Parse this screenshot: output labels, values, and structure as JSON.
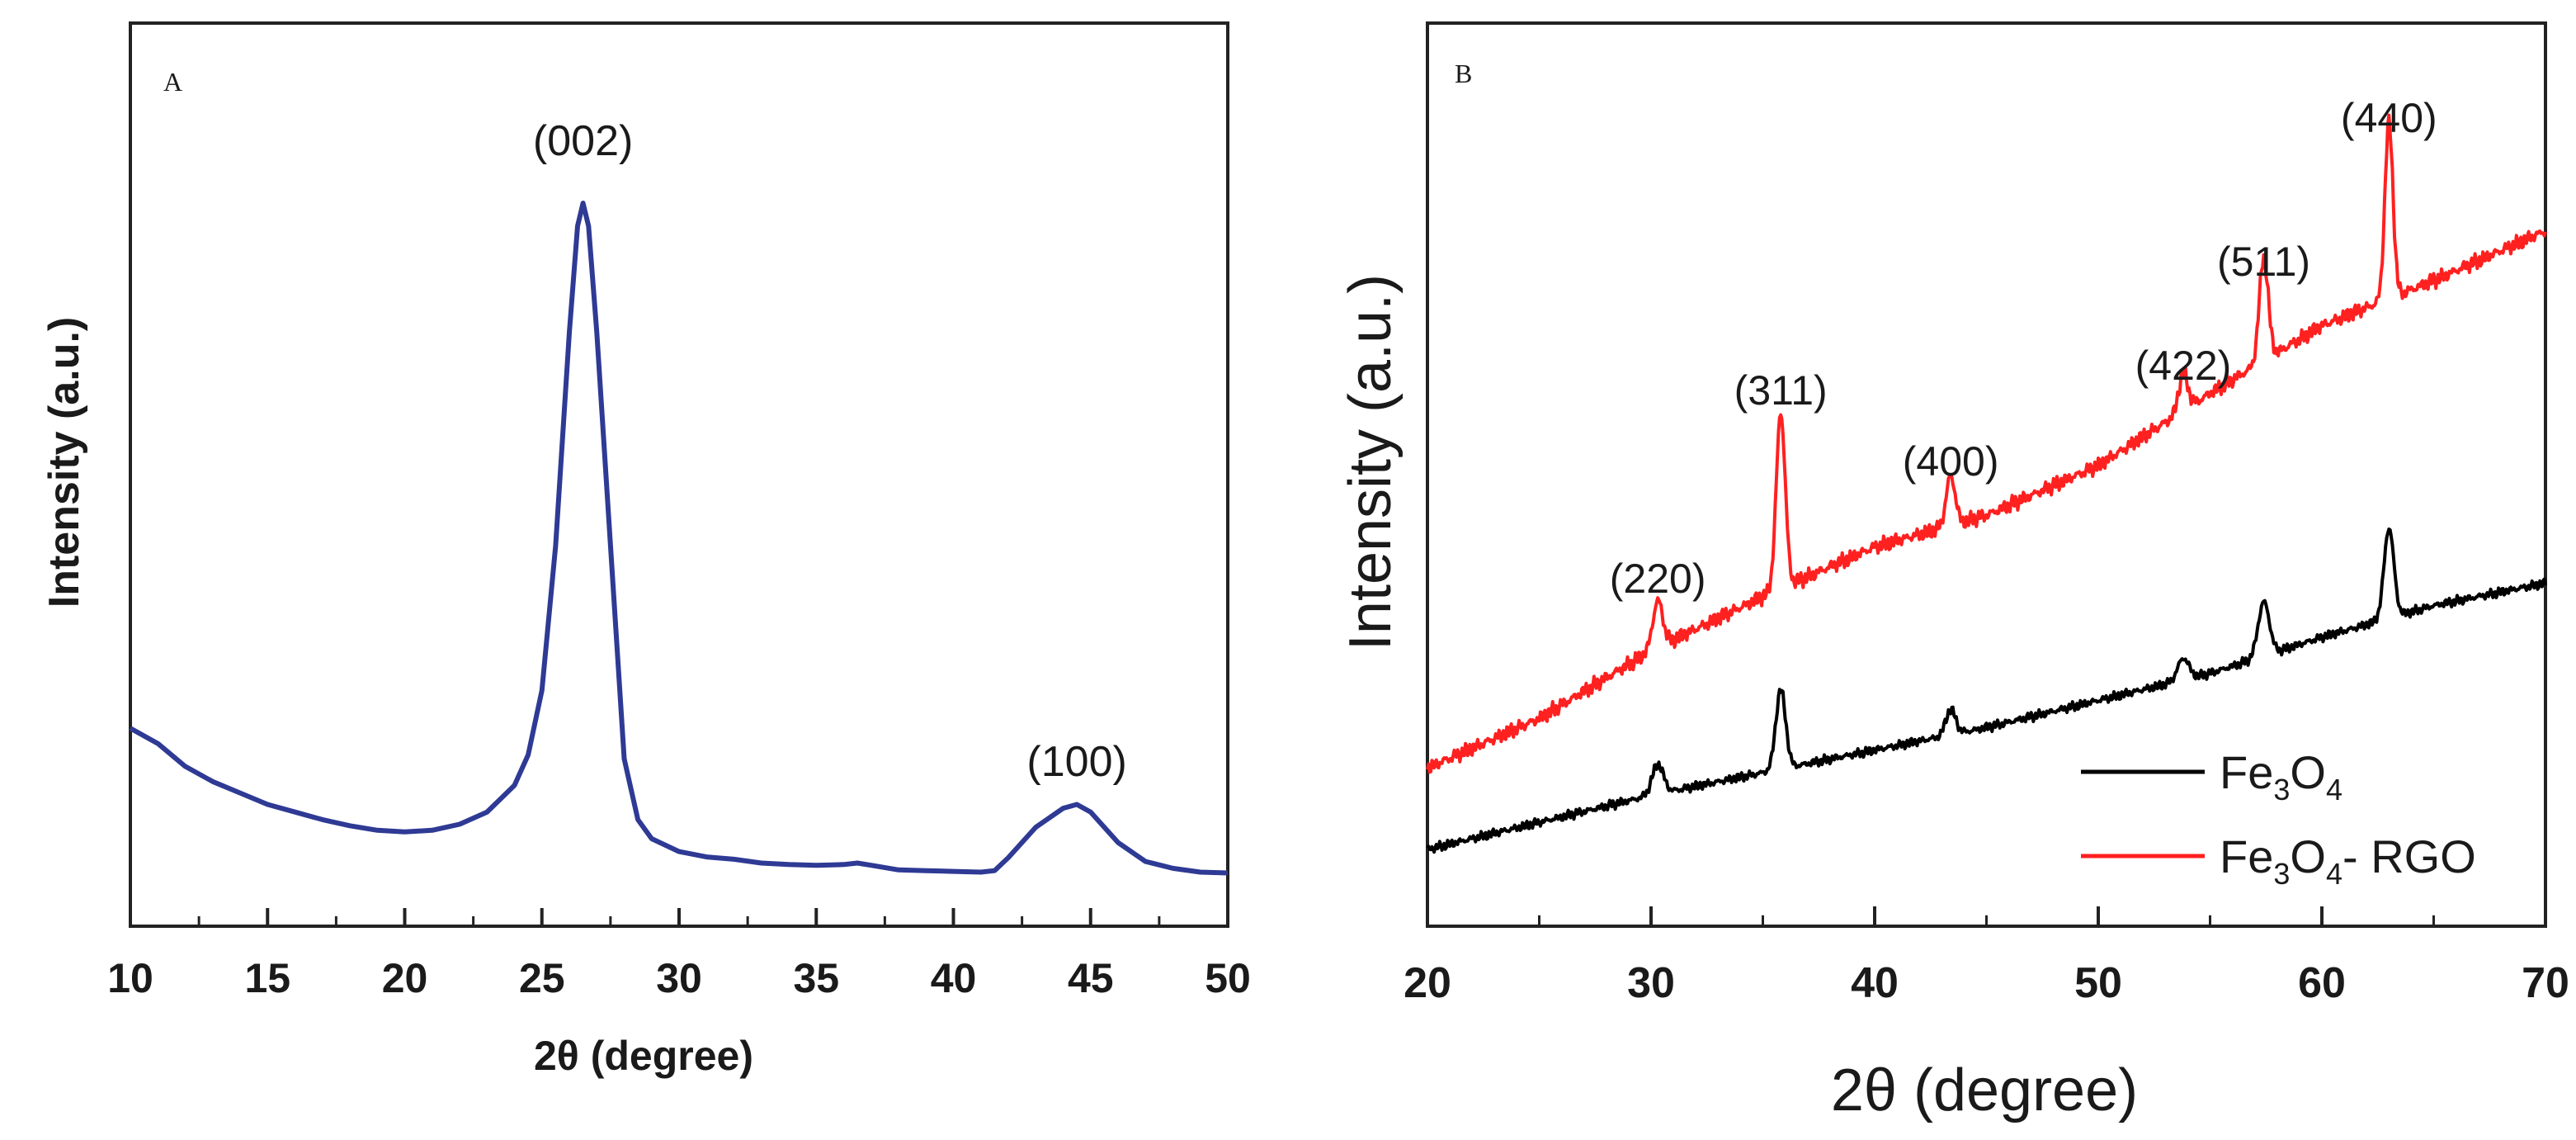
{
  "chart_data": [
    {
      "panel": "A",
      "type": "line",
      "xlabel": "2θ (degree)",
      "ylabel": "Intensity (a.u.)",
      "xlim": [
        10,
        50
      ],
      "ylim": [
        0,
        100
      ],
      "xticks": [
        10,
        15,
        20,
        25,
        30,
        35,
        40,
        45,
        50
      ],
      "color": "#2e3a94",
      "series": [
        {
          "name": "A",
          "x": [
            10,
            11,
            12,
            13,
            14,
            15,
            16,
            17,
            18,
            19,
            20,
            21,
            22,
            23,
            24,
            24.5,
            25,
            25.5,
            26,
            26.3,
            26.5,
            26.7,
            27,
            27.5,
            28,
            28.5,
            29,
            30,
            31,
            32,
            33,
            34,
            35,
            36,
            36.5,
            37,
            38,
            39,
            40,
            41,
            41.5,
            42,
            43,
            44,
            44.5,
            45,
            46,
            47,
            48,
            49,
            50
          ],
          "y": [
            26,
            24,
            21,
            19,
            17.5,
            16,
            15,
            14,
            13.2,
            12.6,
            12.4,
            12.6,
            13.4,
            15,
            18.5,
            22.5,
            31,
            50,
            78,
            92,
            95,
            92,
            78,
            50,
            22,
            14,
            11.5,
            9.8,
            9.1,
            8.8,
            8.3,
            8.1,
            8.0,
            8.1,
            8.3,
            8.0,
            7.4,
            7.3,
            7.2,
            7.1,
            7.3,
            9,
            13,
            15.5,
            16,
            15,
            11,
            8.5,
            7.6,
            7.1,
            7.0
          ]
        }
      ],
      "annotations": [
        {
          "text": "(002)",
          "x": 26.5
        },
        {
          "text": "(100)",
          "x": 44.5
        }
      ]
    },
    {
      "panel": "B",
      "type": "line",
      "xlabel": "2θ (degree)",
      "ylabel": "Intensity (a.u.)",
      "xlim": [
        20,
        70
      ],
      "ylim": [
        0,
        100
      ],
      "xticks": [
        20,
        30,
        40,
        50,
        60,
        70
      ],
      "series": [
        {
          "name": "Fe3O4",
          "color": "#000000",
          "baseline": [
            [
              20,
              8.5
            ],
            [
              25,
              11.5
            ],
            [
              30,
              14.5
            ],
            [
              35,
              17
            ],
            [
              40,
              19.5
            ],
            [
              45,
              22
            ],
            [
              50,
              25
            ],
            [
              55,
              28
            ],
            [
              60,
              32
            ],
            [
              65,
              35.5
            ],
            [
              70,
              38
            ]
          ],
          "peaks": [
            [
              30.3,
              3.3,
              0.25
            ],
            [
              35.8,
              8.8,
              0.22
            ],
            [
              43.4,
              2.8,
              0.22
            ],
            [
              53.8,
              2.4,
              0.25
            ],
            [
              57.4,
              6.0,
              0.25
            ],
            [
              63.0,
              10.0,
              0.22
            ]
          ]
        },
        {
          "name": "Fe3O4- RGO",
          "color": "#ff2020",
          "baseline": [
            [
              20,
              17.5
            ],
            [
              25,
              23
            ],
            [
              30,
              30.5
            ],
            [
              35,
              36.5
            ],
            [
              40,
              42
            ],
            [
              45,
              45.5
            ],
            [
              50,
              51
            ],
            [
              55,
              59
            ],
            [
              60,
              66.5
            ],
            [
              65,
              71.5
            ],
            [
              70,
              77
            ]
          ],
          "peaks": [
            [
              30.3,
              5.2,
              0.22
            ],
            [
              35.8,
              19.5,
              0.2
            ],
            [
              43.4,
              5.5,
              0.2
            ],
            [
              53.8,
              4.2,
              0.2
            ],
            [
              57.4,
              11.5,
              0.2
            ],
            [
              63.0,
              19.5,
              0.18
            ]
          ]
        }
      ],
      "annotations": [
        {
          "text": "(220)",
          "x": 30.3
        },
        {
          "text": "(311)",
          "x": 35.8
        },
        {
          "text": "(400)",
          "x": 43.4
        },
        {
          "text": "(422)",
          "x": 53.8
        },
        {
          "text": "(511)",
          "x": 57.4
        },
        {
          "text": "(440)",
          "x": 63.0
        }
      ],
      "legend": {
        "position": "lower-right",
        "entries": [
          {
            "base": "Fe",
            "sub1": "3",
            "mid": "O",
            "sub2": "4",
            "suffix": ""
          },
          {
            "base": "Fe",
            "sub1": "3",
            "mid": "O",
            "sub2": "4",
            "suffix": "- RGO"
          }
        ]
      }
    }
  ]
}
